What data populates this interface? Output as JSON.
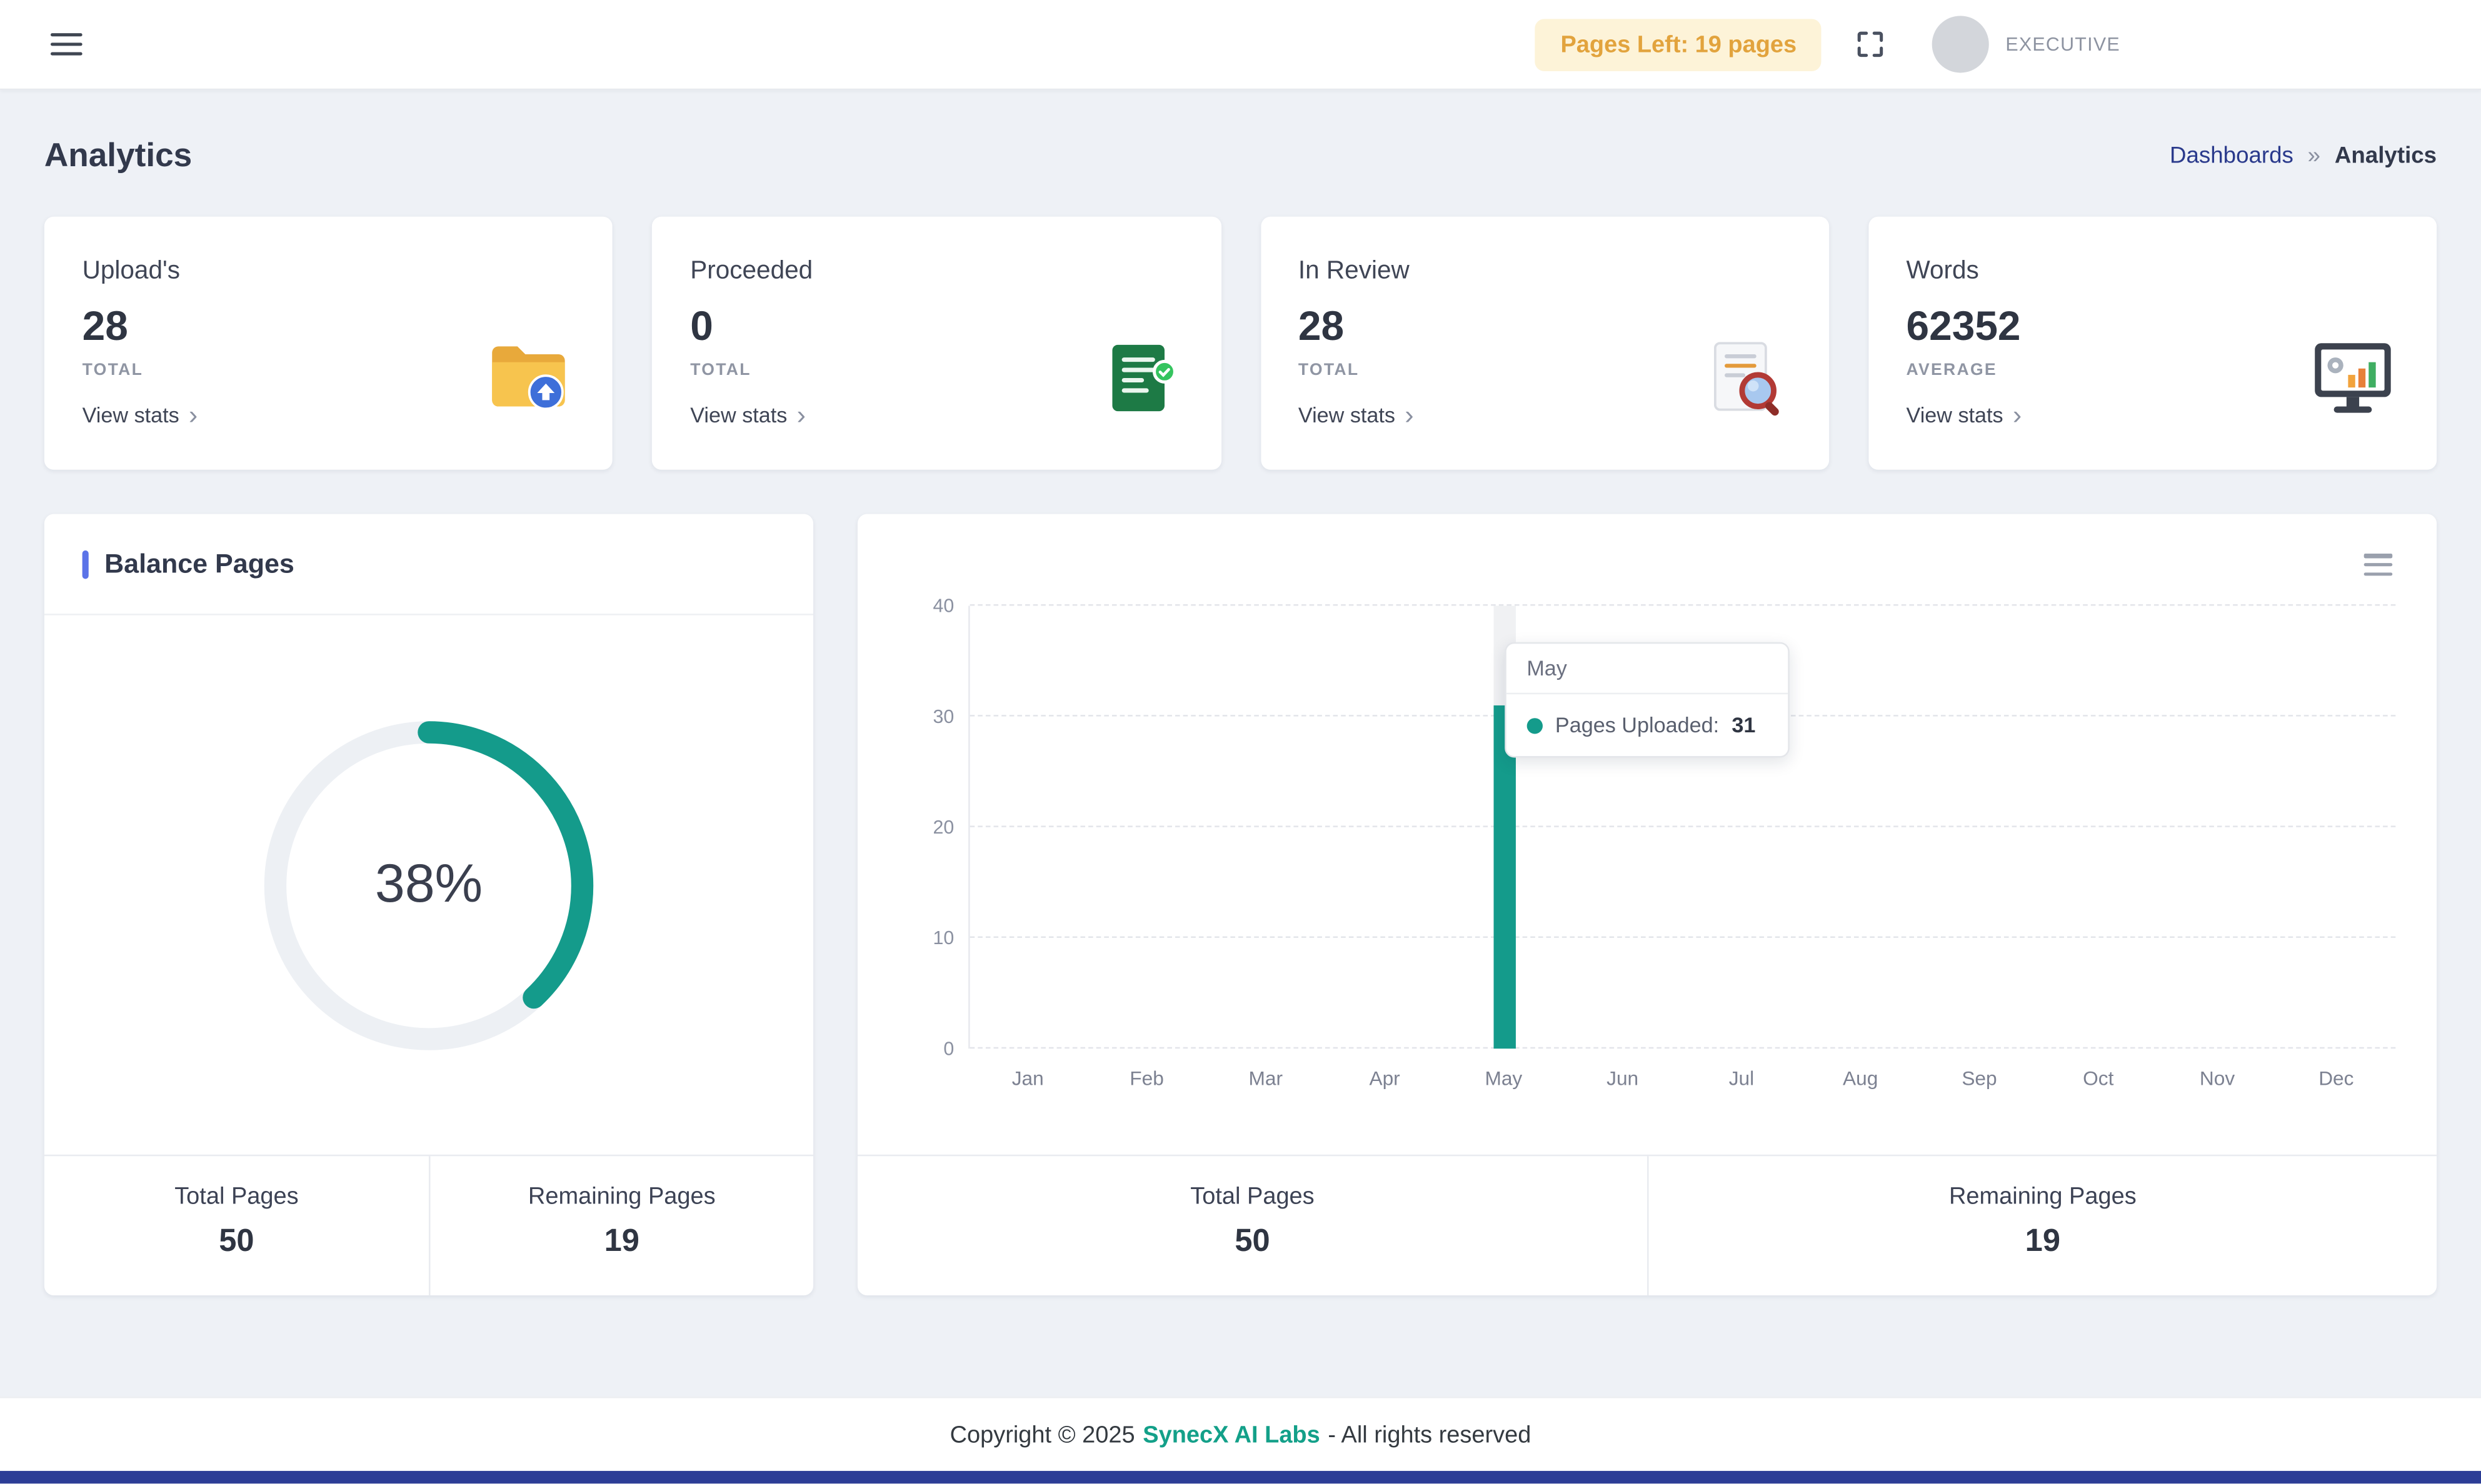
{
  "topbar": {
    "pages_left_badge": "Pages Left: 19 pages",
    "user_role": "EXECUTIVE"
  },
  "header": {
    "title": "Analytics",
    "breadcrumb": {
      "parent": "Dashboards",
      "separator": "»",
      "current": "Analytics"
    }
  },
  "icons": {
    "chevron_right": "›"
  },
  "stat_cards": [
    {
      "title": "Upload's",
      "value": "28",
      "label": "TOTAL",
      "link": "View stats",
      "icon": "folder-upload-icon"
    },
    {
      "title": "Proceeded",
      "value": "0",
      "label": "TOTAL",
      "link": "View stats",
      "icon": "document-check-icon"
    },
    {
      "title": "In Review",
      "value": "28",
      "label": "TOTAL",
      "link": "View stats",
      "icon": "document-search-icon"
    },
    {
      "title": "Words",
      "value": "62352",
      "label": "AVERAGE",
      "link": "View stats",
      "icon": "monitor-chart-icon"
    }
  ],
  "balance_card": {
    "title": "Balance Pages",
    "percent": "38%",
    "percent_value": 38,
    "totals": [
      {
        "label": "Total Pages",
        "value": "50"
      },
      {
        "label": "Remaining Pages",
        "value": "19"
      }
    ]
  },
  "chart_card": {
    "tooltip": {
      "title": "May",
      "series_label": "Pages Uploaded:",
      "value": "31"
    },
    "totals": [
      {
        "label": "Total Pages",
        "value": "50"
      },
      {
        "label": "Remaining Pages",
        "value": "19"
      }
    ]
  },
  "chart_data": {
    "type": "bar",
    "categories": [
      "Jan",
      "Feb",
      "Mar",
      "Apr",
      "May",
      "Jun",
      "Jul",
      "Aug",
      "Sep",
      "Oct",
      "Nov",
      "Dec"
    ],
    "series": [
      {
        "name": "Pages Uploaded",
        "values": [
          0,
          0,
          0,
          0,
          31,
          0,
          0,
          0,
          0,
          0,
          0,
          0
        ]
      }
    ],
    "ylim": [
      0,
      40
    ],
    "yticks": [
      0,
      10,
      20,
      30,
      40
    ],
    "bar_color": "#149b8b",
    "highlight_month": "May",
    "grid": "dashed-horizontal",
    "legend": "none",
    "title": "",
    "xlabel": "",
    "ylabel": ""
  },
  "footer": {
    "copyright_prefix": "Copyright © 2025",
    "brand": "SynecX AI Labs",
    "suffix": "- All rights reserved"
  },
  "colors": {
    "accent_teal": "#149b8b",
    "badge_bg": "#fdf3d8",
    "badge_text": "#e2a33d",
    "breadcrumb_link": "#2a3a8c",
    "bottom_bar": "#2c3d96",
    "background": "#eef1f6"
  }
}
